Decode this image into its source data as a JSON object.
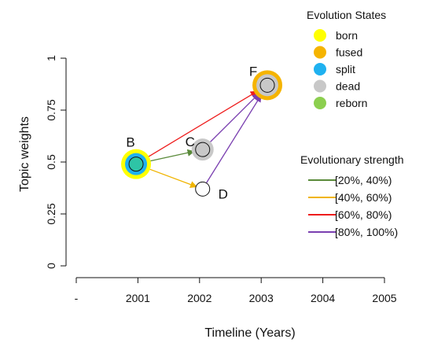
{
  "chart_data": {
    "type": "scatter",
    "title": "",
    "xlabel": "Timeline (Years)",
    "ylabel": "Topic weights",
    "x_tick_labels": [
      "-",
      "2001",
      "2002",
      "2003",
      "2004",
      "2005"
    ],
    "x_tick_values": [
      2000,
      2001,
      2002,
      2003,
      2004,
      2005
    ],
    "xlim": [
      2000,
      2005
    ],
    "y_tick_labels": [
      "0",
      "0.25",
      "0.5",
      "0.75",
      "1"
    ],
    "y_tick_values": [
      0,
      0.25,
      0.5,
      0.75,
      1
    ],
    "ylim": [
      0,
      1
    ],
    "grid": false,
    "nodes": [
      {
        "id": "B",
        "label": "B",
        "x": 2000.97,
        "y": 0.49,
        "ring_states": [
          "born",
          "split"
        ],
        "core_color": "#2ec4a6"
      },
      {
        "id": "C",
        "label": "C",
        "x": 2002.05,
        "y": 0.56,
        "ring_states": [
          "dead"
        ],
        "core_color": "#c8c8c8"
      },
      {
        "id": "D",
        "label": "D",
        "x": 2002.05,
        "y": 0.37,
        "ring_states": [],
        "core_color": "#ffffff"
      },
      {
        "id": "F",
        "label": "F",
        "x": 2003.1,
        "y": 0.87,
        "ring_states": [
          "fused",
          "dead"
        ],
        "core_color": "#c8c8c8"
      }
    ],
    "edges": [
      {
        "from": "B",
        "to": "C",
        "strength": "[20%, 40%)"
      },
      {
        "from": "B",
        "to": "D",
        "strength": "[40%, 60%)"
      },
      {
        "from": "B",
        "to": "F",
        "strength": "[60%, 80%)"
      },
      {
        "from": "C",
        "to": "F",
        "strength": "[80%, 100%)"
      },
      {
        "from": "D",
        "to": "F",
        "strength": "[80%, 100%)"
      }
    ],
    "legend_states": {
      "title": "Evolution States",
      "placement": "top-right",
      "items": [
        {
          "label": "born",
          "color": "#ffff00"
        },
        {
          "label": "fused",
          "color": "#f5b400"
        },
        {
          "label": "split",
          "color": "#1fb1f0"
        },
        {
          "label": "dead",
          "color": "#c8c8c8"
        },
        {
          "label": "reborn",
          "color": "#8ccf4f"
        }
      ]
    },
    "legend_strength": {
      "title": "Evolutionary strength",
      "placement": "right",
      "items": [
        {
          "label": "[20%, 40%)",
          "color": "#5a8a3a"
        },
        {
          "label": "[40%, 60%)",
          "color": "#f0b400"
        },
        {
          "label": "[60%, 80%)",
          "color": "#ee1c1c"
        },
        {
          "label": "[80%, 100%)",
          "color": "#7a3fb0"
        }
      ]
    }
  }
}
